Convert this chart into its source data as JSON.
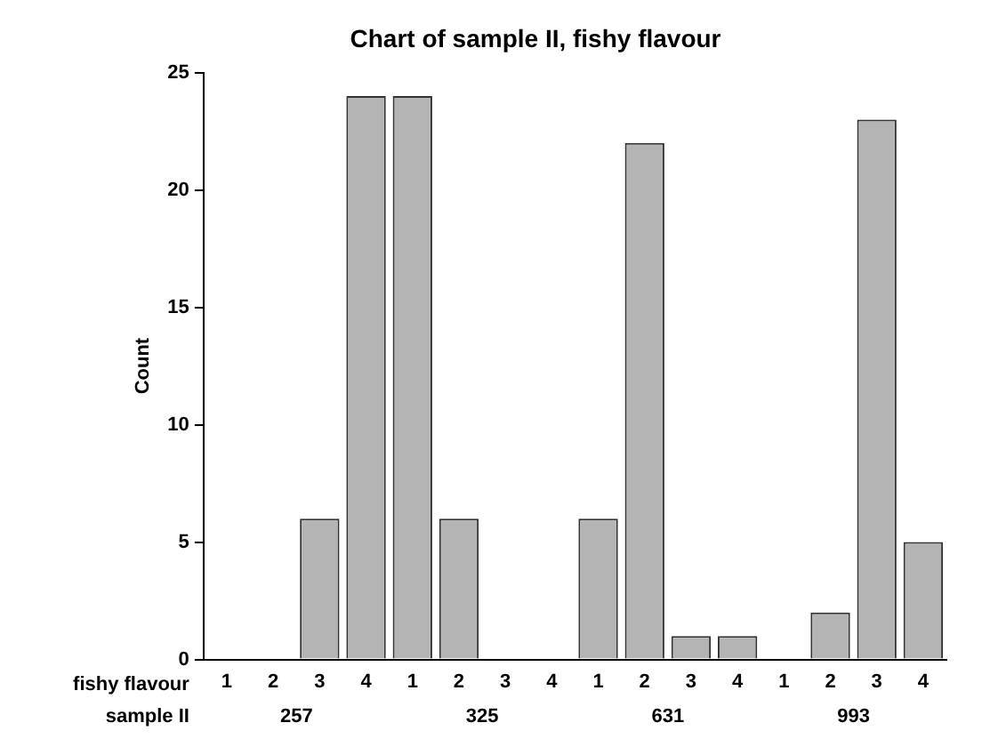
{
  "chart_data": {
    "type": "bar",
    "title": "Chart of sample II, fishy flavour",
    "ylabel": "Count",
    "categories": [
      "1",
      "2",
      "3",
      "4",
      "1",
      "2",
      "3",
      "4",
      "1",
      "2",
      "3",
      "4",
      "1",
      "2",
      "3",
      "4"
    ],
    "values": [
      0,
      0,
      6,
      24,
      24,
      6,
      0,
      0,
      6,
      22,
      1,
      1,
      0,
      2,
      23,
      5
    ],
    "color": "#b4b4b4",
    "ylim": [
      0,
      25
    ],
    "yticks": [
      0,
      5,
      10,
      15,
      20,
      25
    ],
    "grid": false,
    "legend": false,
    "annotations": [
      "fishy flavour",
      "sample II",
      "257",
      "325",
      "631",
      "993"
    ]
  }
}
